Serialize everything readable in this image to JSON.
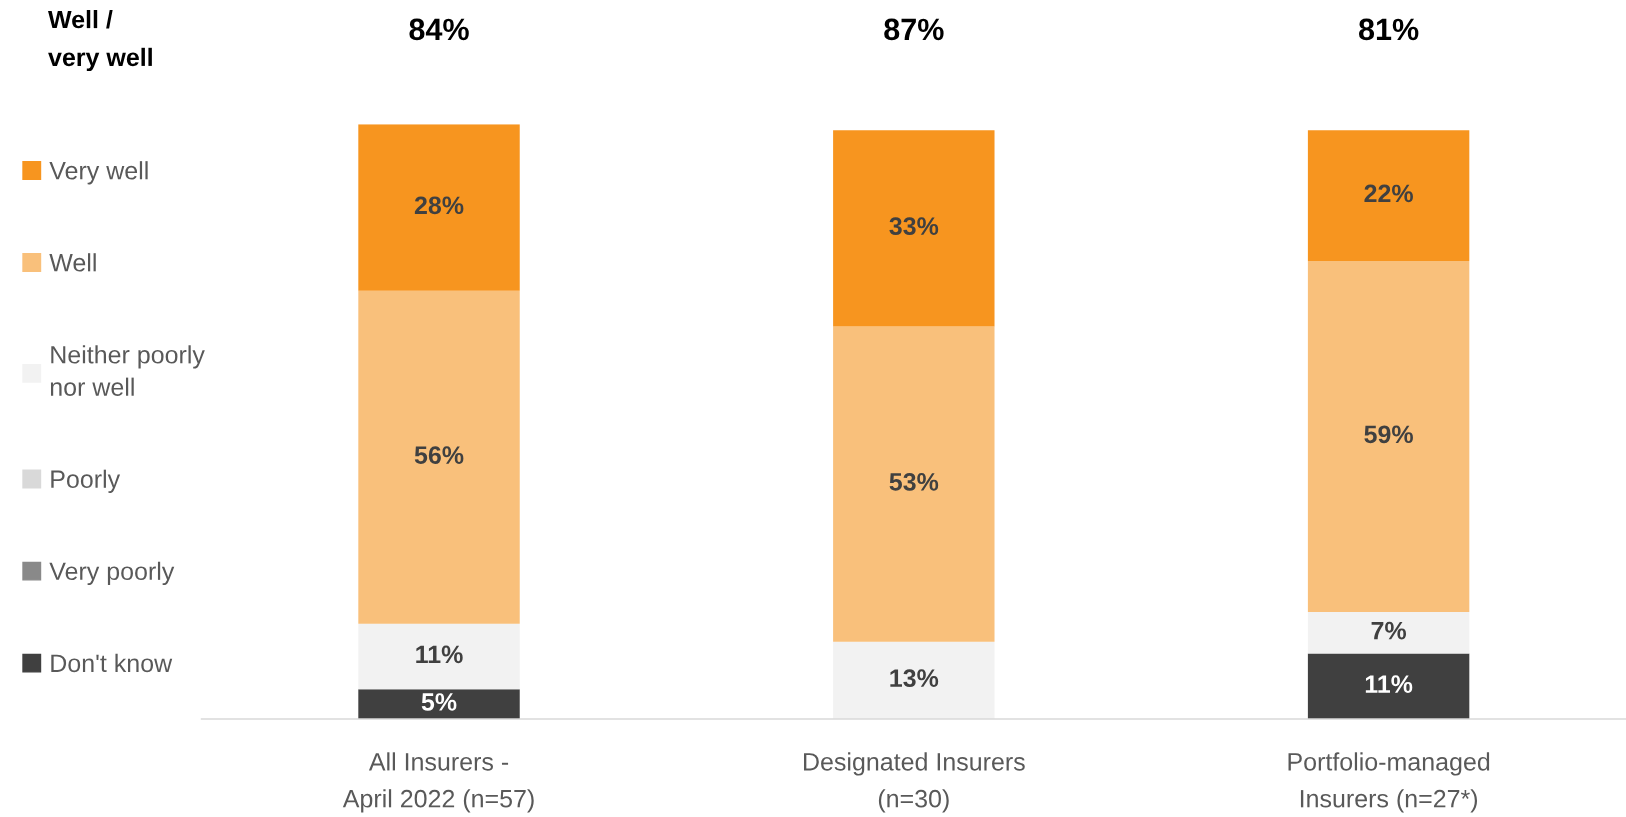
{
  "chart_data": {
    "type": "bar",
    "stacked": true,
    "legend": "left",
    "tick_labels": "x",
    "annotations": [
      "Well /\nvery well",
      "84%",
      "87%",
      "81%"
    ],
    "categories": [
      "All Insurers -\nApril 2022 (n=57)",
      "Designated Insurers\n(n=30)",
      "Portfolio-managed\nInsurers (n=27*)"
    ],
    "series": [
      {
        "name": "Don't know",
        "color": "#404040",
        "values": [
          5,
          0,
          11
        ],
        "value_labels": [
          "5%",
          null,
          "11%"
        ]
      },
      {
        "name": "Very poorly",
        "color": "#898989",
        "values": [
          0,
          0,
          0
        ],
        "value_labels": [
          null,
          null,
          null
        ]
      },
      {
        "name": "Poorly",
        "color": "#d9d9d9",
        "values": [
          0,
          0,
          0
        ],
        "value_labels": [
          null,
          null,
          null
        ]
      },
      {
        "name": "Neither poorly\nnor well",
        "color": "#f2f2f2",
        "values": [
          11,
          13,
          7
        ],
        "value_labels": [
          "11%",
          "13%",
          "7%"
        ]
      },
      {
        "name": "Well",
        "color": "#f9c07b",
        "values": [
          56,
          53,
          59
        ],
        "value_labels": [
          "56%",
          "53%",
          "59%"
        ]
      },
      {
        "name": "Very well",
        "color": "#f7951f",
        "values": [
          28,
          33,
          22
        ],
        "value_labels": [
          "28%",
          "33%",
          "22%"
        ]
      }
    ]
  }
}
